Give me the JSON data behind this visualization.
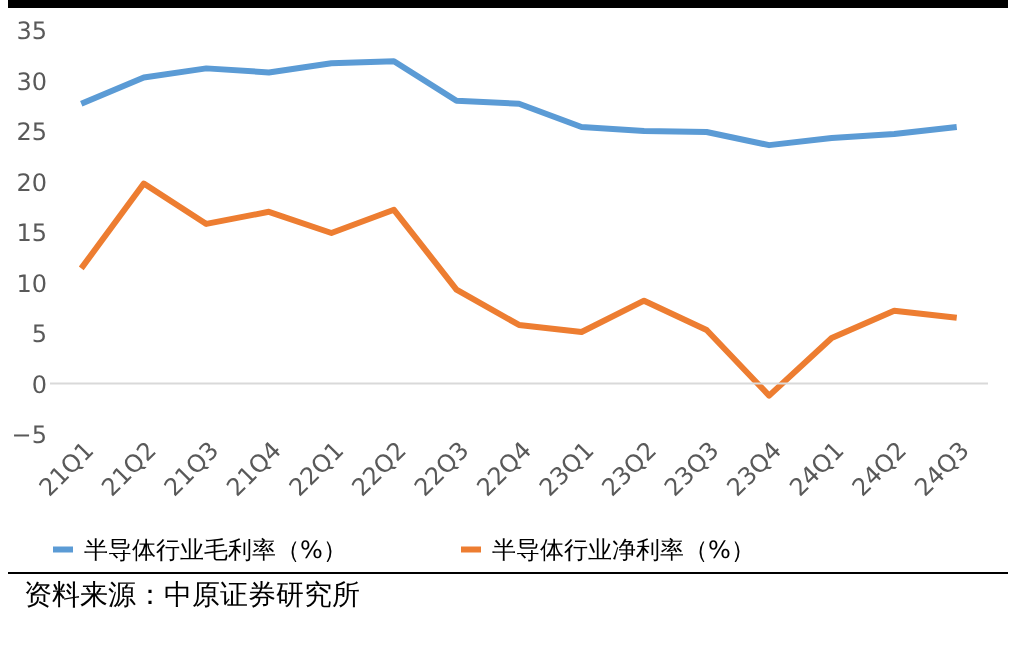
{
  "chart_data": {
    "type": "line",
    "categories": [
      "21Q1",
      "21Q2",
      "21Q3",
      "21Q4",
      "22Q1",
      "22Q2",
      "22Q3",
      "22Q4",
      "23Q1",
      "23Q2",
      "23Q3",
      "23Q4",
      "24Q1",
      "24Q2",
      "24Q3"
    ],
    "series": [
      {
        "name": "半导体行业毛利率（%）",
        "color": "#5b9bd5",
        "values": [
          27.7,
          30.3,
          31.2,
          30.8,
          31.7,
          31.9,
          28.0,
          27.7,
          25.4,
          25.0,
          24.9,
          23.6,
          24.3,
          24.7,
          25.4
        ]
      },
      {
        "name": "半导体行业净利率（%）",
        "color": "#ed7d31",
        "values": [
          11.4,
          19.8,
          15.8,
          17.0,
          14.9,
          17.2,
          9.3,
          5.8,
          5.1,
          8.2,
          5.3,
          -1.2,
          4.5,
          7.2,
          6.5
        ]
      }
    ],
    "ylim": [
      -5,
      35
    ],
    "yticks": [
      -5,
      0,
      5,
      10,
      15,
      20,
      25,
      30,
      35
    ],
    "grid": false,
    "legend": "bottom",
    "marker": "none",
    "line_style": "solid",
    "annotations": [
      "资料来源：中原证券研究所"
    ]
  }
}
